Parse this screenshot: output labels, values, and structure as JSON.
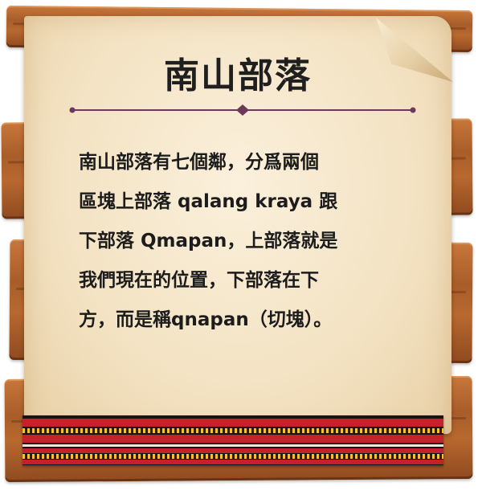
{
  "title": "南山部落",
  "body_lines": [
    "南山部落有七個鄰，分爲兩個",
    "區塊上部落 qalang kraya 跟",
    "下部落 Qmapan，上部落就是",
    "我們現在的位置，下部落在下",
    "方，而是稱qnapan（切塊）。"
  ],
  "colors": {
    "wood": "#a85d2a",
    "paper": "#f3e2c2",
    "divider": "#6b3a5a",
    "band_red": "#c4222a",
    "band_yellow": "#f1c232"
  }
}
